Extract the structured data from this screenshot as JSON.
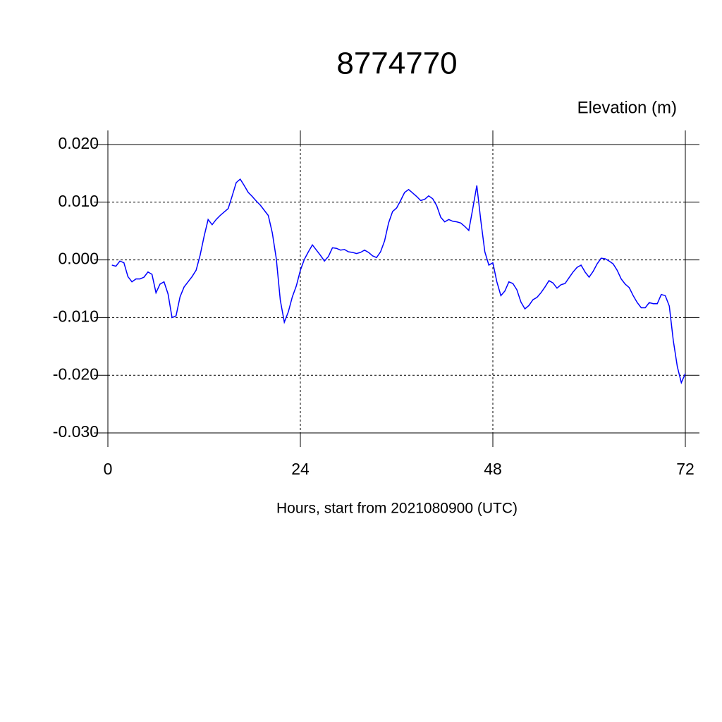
{
  "chart_data": {
    "type": "line",
    "title": "8774770",
    "ylabel": "Elevation (m)",
    "xlabel": "Hours, start from 2021080900 (UTC)",
    "xlim": [
      0,
      72
    ],
    "xticks": [
      0,
      24,
      48,
      72
    ],
    "ylim": [
      -0.03,
      0.02
    ],
    "yticks": [
      {
        "value": -0.03,
        "label": "-0.030"
      },
      {
        "value": -0.02,
        "label": "-0.020"
      },
      {
        "value": -0.01,
        "label": "-0.010"
      },
      {
        "value": 0,
        "label": "0.000"
      },
      {
        "value": 0.01,
        "label": "0.010"
      },
      {
        "value": 0.02,
        "label": "0.020"
      }
    ],
    "grid": true,
    "x": [
      0.5,
      1,
      1.5,
      2,
      2.5,
      3,
      3.5,
      4,
      4.5,
      5,
      5.5,
      6,
      6.5,
      7,
      7.5,
      8,
      8.5,
      9,
      9.5,
      10,
      10.5,
      11,
      11.5,
      12,
      12.5,
      13,
      13.5,
      14,
      14.5,
      15,
      15.5,
      16,
      16.5,
      17,
      17.5,
      18,
      18.5,
      19,
      19.5,
      20,
      20.5,
      21,
      21.5,
      22,
      22.5,
      23,
      23.5,
      24,
      24.5,
      25,
      25.5,
      26,
      26.5,
      27,
      27.5,
      28,
      28.5,
      29,
      29.5,
      30,
      30.5,
      31,
      31.5,
      32,
      32.5,
      33,
      33.5,
      34,
      34.5,
      35,
      35.5,
      36,
      36.5,
      37,
      37.5,
      38,
      38.5,
      39,
      39.5,
      40,
      40.5,
      41,
      41.5,
      42,
      42.5,
      43,
      43.5,
      44,
      44.5,
      45,
      45.5,
      46,
      46.5,
      47,
      47.5,
      48,
      48.5,
      49,
      49.5,
      50,
      50.5,
      51,
      51.5,
      52,
      52.5,
      53,
      53.5,
      54,
      54.5,
      55,
      55.5,
      56,
      56.5,
      57,
      57.5,
      58,
      58.5,
      59,
      59.5,
      60,
      60.5,
      61,
      61.5,
      62,
      62.5,
      63,
      63.5,
      64,
      64.5,
      65,
      65.5,
      66,
      66.5,
      67,
      67.5,
      68,
      68.5,
      69,
      69.5,
      70,
      70.5,
      71,
      71.5,
      72
    ],
    "series": [
      {
        "color": "#0000ff",
        "values": [
          -0.0009,
          -0.0011,
          -0.0002,
          -0.0005,
          -0.0029,
          -0.0038,
          -0.0033,
          -0.0033,
          -0.003,
          -0.0021,
          -0.0025,
          -0.0057,
          -0.0042,
          -0.0038,
          -0.0059,
          -0.01,
          -0.0097,
          -0.0064,
          -0.0047,
          -0.0038,
          -0.0029,
          -0.0018,
          0.0008,
          0.0041,
          0.007,
          0.0061,
          0.007,
          0.0077,
          0.0083,
          0.0089,
          0.0111,
          0.0134,
          0.014,
          0.0129,
          0.0117,
          0.011,
          0.0102,
          0.0095,
          0.0086,
          0.0077,
          0.0047,
          0.0002,
          -0.007,
          -0.0108,
          -0.009,
          -0.0064,
          -0.0045,
          -0.0018,
          0.0001,
          0.0014,
          0.0026,
          0.0017,
          0.0008,
          -0.0002,
          0.0006,
          0.0021,
          0.002,
          0.0017,
          0.0018,
          0.0014,
          0.0013,
          0.0011,
          0.0013,
          0.0017,
          0.0013,
          0.0007,
          0.0004,
          0.0014,
          0.0033,
          0.0064,
          0.0084,
          0.009,
          0.0103,
          0.0117,
          0.0122,
          0.0116,
          0.011,
          0.0103,
          0.0105,
          0.0111,
          0.0106,
          0.0094,
          0.0074,
          0.0066,
          0.007,
          0.0067,
          0.0066,
          0.0064,
          0.0058,
          0.0051,
          0.0089,
          0.0129,
          0.0068,
          0.0014,
          -0.0009,
          -0.0005,
          -0.0038,
          -0.0062,
          -0.0054,
          -0.0038,
          -0.0041,
          -0.0052,
          -0.0073,
          -0.0085,
          -0.0079,
          -0.0069,
          -0.0065,
          -0.0057,
          -0.0047,
          -0.0036,
          -0.004,
          -0.0049,
          -0.0043,
          -0.0041,
          -0.0031,
          -0.0021,
          -0.0013,
          -0.0009,
          -0.0021,
          -0.003,
          -0.002,
          -0.0007,
          0.0003,
          0.0002,
          -0.0002,
          -0.0007,
          -0.0018,
          -0.0033,
          -0.0042,
          -0.0048,
          -0.0062,
          -0.0074,
          -0.0083,
          -0.0083,
          -0.0074,
          -0.0076,
          -0.0076,
          -0.006,
          -0.0062,
          -0.008,
          -0.014,
          -0.0185,
          -0.0213,
          -0.0197
        ]
      }
    ]
  }
}
